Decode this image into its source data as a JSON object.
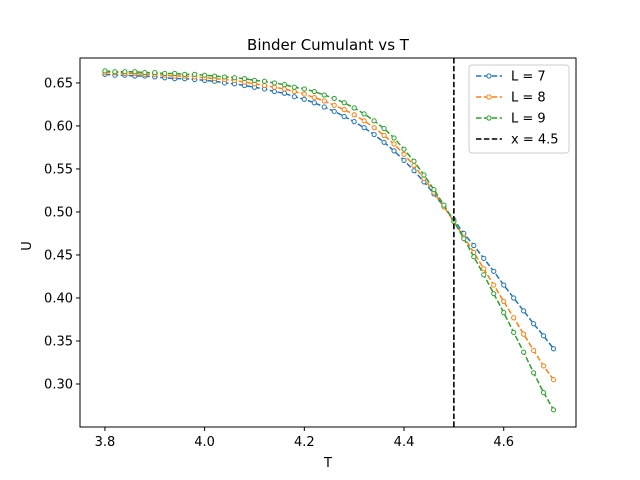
{
  "chart_data": {
    "type": "line",
    "title": "Binder Cumulant vs T",
    "xlabel": "T",
    "ylabel": "U",
    "xlim": [
      3.75,
      4.745
    ],
    "ylim": [
      0.25,
      0.679
    ],
    "x_ticks": [
      3.8,
      4.0,
      4.2,
      4.4,
      4.6
    ],
    "x_tick_labels": [
      "3.8",
      "4.0",
      "4.2",
      "4.4",
      "4.6"
    ],
    "y_ticks": [
      0.3,
      0.35,
      0.4,
      0.45,
      0.5,
      0.55,
      0.6,
      0.65
    ],
    "y_tick_labels": [
      "0.30",
      "0.35",
      "0.40",
      "0.45",
      "0.50",
      "0.55",
      "0.60",
      "0.65"
    ],
    "grid": false,
    "legend_position": "top-right",
    "x": [
      3.8,
      3.82,
      3.84,
      3.86,
      3.88,
      3.9,
      3.92,
      3.94,
      3.96,
      3.98,
      4.0,
      4.02,
      4.04,
      4.06,
      4.08,
      4.1,
      4.12,
      4.14,
      4.16,
      4.18,
      4.2,
      4.22,
      4.24,
      4.26,
      4.28,
      4.3,
      4.32,
      4.34,
      4.36,
      4.38,
      4.4,
      4.42,
      4.44,
      4.46,
      4.48,
      4.5,
      4.52,
      4.54,
      4.56,
      4.58,
      4.6,
      4.62,
      4.64,
      4.66,
      4.68,
      4.7
    ],
    "series": [
      {
        "name": "L = 7",
        "color": "#1f77b4",
        "values": [
          0.66,
          0.659,
          0.659,
          0.658,
          0.658,
          0.657,
          0.656,
          0.655,
          0.655,
          0.654,
          0.653,
          0.652,
          0.65,
          0.649,
          0.647,
          0.645,
          0.643,
          0.64,
          0.638,
          0.634,
          0.631,
          0.627,
          0.622,
          0.617,
          0.611,
          0.605,
          0.598,
          0.59,
          0.581,
          0.571,
          0.56,
          0.548,
          0.535,
          0.521,
          0.506,
          0.491,
          0.475,
          0.461,
          0.446,
          0.431,
          0.415,
          0.4,
          0.385,
          0.37,
          0.356,
          0.341
        ]
      },
      {
        "name": "L = 8",
        "color": "#ff7f0e",
        "values": [
          0.662,
          0.662,
          0.661,
          0.661,
          0.66,
          0.66,
          0.659,
          0.658,
          0.658,
          0.657,
          0.656,
          0.655,
          0.654,
          0.653,
          0.651,
          0.649,
          0.647,
          0.645,
          0.643,
          0.64,
          0.637,
          0.633,
          0.629,
          0.624,
          0.619,
          0.613,
          0.606,
          0.598,
          0.589,
          0.579,
          0.567,
          0.554,
          0.539,
          0.523,
          0.506,
          0.489,
          0.471,
          0.453,
          0.434,
          0.415,
          0.396,
          0.377,
          0.358,
          0.339,
          0.321,
          0.305
        ]
      },
      {
        "name": "L = 9",
        "color": "#2ca02c",
        "values": [
          0.664,
          0.663,
          0.663,
          0.663,
          0.662,
          0.662,
          0.661,
          0.661,
          0.66,
          0.66,
          0.659,
          0.658,
          0.657,
          0.656,
          0.655,
          0.653,
          0.652,
          0.65,
          0.648,
          0.645,
          0.643,
          0.64,
          0.636,
          0.632,
          0.627,
          0.621,
          0.614,
          0.606,
          0.597,
          0.586,
          0.573,
          0.559,
          0.543,
          0.526,
          0.508,
          0.489,
          0.469,
          0.448,
          0.427,
          0.405,
          0.383,
          0.36,
          0.337,
          0.313,
          0.29,
          0.27
        ]
      }
    ],
    "vline": {
      "x": 4.5,
      "name": "x = 4.5",
      "color": "#000000"
    }
  }
}
